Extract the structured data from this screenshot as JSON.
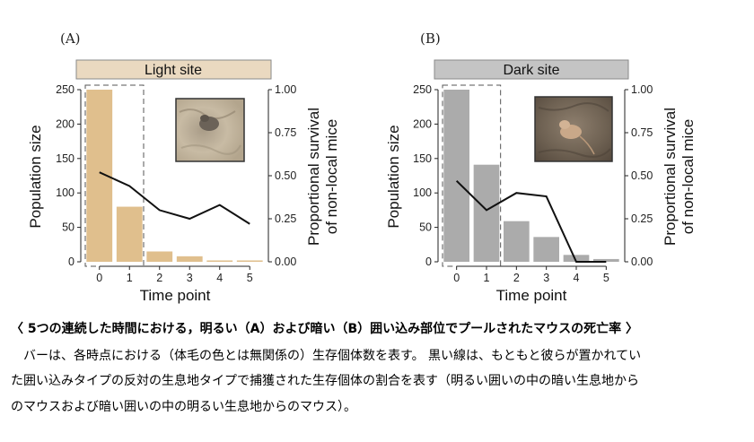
{
  "caption": {
    "title": "〈 5つの連続した時間における，明るい（A）および暗い（B）囲い込み部位でプールされたマウスの死亡率 〉",
    "lines": [
      "　バーは、各時点における（体毛の色とは無関係の）生存個体数を表す。 黒い線は、もともと彼らが置かれてい",
      "た囲い込みタイプの反対の生息地タイプで捕獲された生存個体の割合を表す（明るい囲いの中の暗い生息地から",
      "のマウスおよび暗い囲いの中の明るい生息地からのマウス）。"
    ]
  },
  "colors": {
    "light_bar": "#e0bf8d",
    "dark_bar": "#ababab",
    "line": "#111111"
  },
  "chart_data": [
    {
      "type": "bar",
      "panel_label": "(A)",
      "title": "Light site",
      "xlabel": "Time point",
      "ylabel": "Population size",
      "y2label": [
        "Proportional survival",
        "of non-local mice"
      ],
      "categories": [
        "0",
        "1",
        "2",
        "3",
        "4",
        "5"
      ],
      "ylim": [
        0,
        250
      ],
      "yticks": [
        "0",
        "50",
        "100",
        "150",
        "200",
        "250"
      ],
      "y2lim": [
        0,
        1
      ],
      "y2ticks": [
        "0.00",
        "0.25",
        "0.50",
        "0.75",
        "1.00"
      ],
      "series": [
        {
          "type": "bar",
          "values": [
            250,
            80,
            15,
            8,
            2,
            2
          ]
        },
        {
          "type": "line",
          "axis": "right",
          "values": [
            0.52,
            0.44,
            0.3,
            0.25,
            0.33,
            0.22
          ]
        }
      ],
      "highlight": "dashed box around time points 0–1",
      "inset_photo": "mouse on light sandy ground"
    },
    {
      "type": "bar",
      "panel_label": "(B)",
      "title": "Dark site",
      "xlabel": "Time point",
      "ylabel": "Population size",
      "y2label": [
        "Proportional survival",
        "of non-local mice"
      ],
      "categories": [
        "0",
        "1",
        "2",
        "3",
        "4",
        "5"
      ],
      "ylim": [
        0,
        250
      ],
      "yticks": [
        "0",
        "50",
        "100",
        "150",
        "200",
        "250"
      ],
      "y2lim": [
        0,
        1
      ],
      "y2ticks": [
        "0.00",
        "0.25",
        "0.50",
        "0.75",
        "1.00"
      ],
      "series": [
        {
          "type": "bar",
          "values": [
            250,
            141,
            59,
            36,
            10,
            4
          ]
        },
        {
          "type": "line",
          "axis": "right",
          "values": [
            0.47,
            0.3,
            0.4,
            0.38,
            0.0,
            0.0
          ]
        }
      ],
      "highlight": "dashed box around time points 0–1",
      "inset_photo": "mouse on dark ground"
    }
  ]
}
